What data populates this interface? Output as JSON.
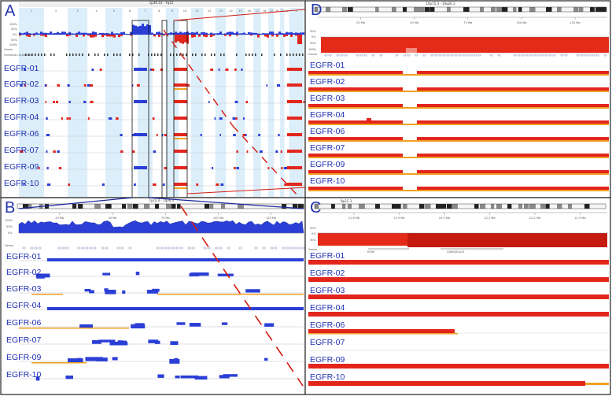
{
  "figure": {
    "panels": {
      "A": {
        "letter": "A",
        "locus": "1p36.33 - Yq12",
        "chromosomes": [
          "1",
          "2",
          "3",
          "4",
          "5",
          "6",
          "7",
          "8",
          "9",
          "10",
          "11",
          "12",
          "13",
          "14",
          "15",
          "16",
          "17",
          "18",
          "19",
          "20",
          "21",
          "22",
          "X"
        ],
        "scale_labels": [
          "100%",
          "50%",
          "0%",
          "50%",
          "100%"
        ],
        "gene_track": "Genes",
        "oncoscan_track": "OncoScan Actionable",
        "samples": [
          "EGFR-01",
          "EGFR-02",
          "EGFR-03",
          "EGFR-04",
          "EGFR-06",
          "EGFR-07",
          "EGFR-09",
          "EGFR-10"
        ]
      },
      "B": {
        "letter": "B",
        "locus": "7p22.3 - 7q36.3",
        "ruler_ticks": [
          "25 Mb",
          "50 Mb",
          "75 Mb",
          "100 Mb",
          "125 Mb"
        ],
        "scale_labels": [
          "100%",
          "50%",
          "0%"
        ],
        "gene_track": "Genes",
        "samples": [
          "EGFR-01",
          "EGFR-02",
          "EGFR-03",
          "EGFR-04",
          "EGFR-06",
          "EGFR-07",
          "EGFR-09",
          "EGFR-10"
        ]
      },
      "C": {
        "letter": "C",
        "locus": "9p21.3",
        "ruler_ticks": [
          "21.8 Mb",
          "21.9 Mb",
          "22.0 Mb",
          "22.1 Mb",
          "22.2 Mb",
          "22.3 Mb"
        ],
        "scale_labels": [
          "50%",
          "0%",
          "50%"
        ],
        "gene_track": "Genes",
        "genes": [
          "MTAP",
          "CDKN2B-AS1"
        ],
        "samples": [
          "EGFR-01",
          "EGFR-02",
          "EGFR-03",
          "EGFR-04",
          "EGFR-06",
          "EGFR-07",
          "EGFR-09",
          "EGFR-10"
        ]
      },
      "D": {
        "letter": "D",
        "locus": "10p15.3 - 10q26.3",
        "ruler_ticks": [
          "25 Mb",
          "50 Mb",
          "75 Mb",
          "100 Mb",
          "125 Mb"
        ],
        "scale_labels": [
          "50%",
          "0%",
          "50%",
          "100%"
        ],
        "gene_track": "Genes",
        "samples": [
          "EGFR-01",
          "EGFR-02",
          "EGFR-03",
          "EGFR-04",
          "EGFR-06",
          "EGFR-07",
          "EGFR-09",
          "EGFR-10"
        ]
      }
    },
    "colors": {
      "gain": "#2b3fd6",
      "loss": "#e3261c",
      "loh": "#f0a020",
      "chrom_shade": "#dceefa",
      "label": "#1f2fb0"
    }
  }
}
